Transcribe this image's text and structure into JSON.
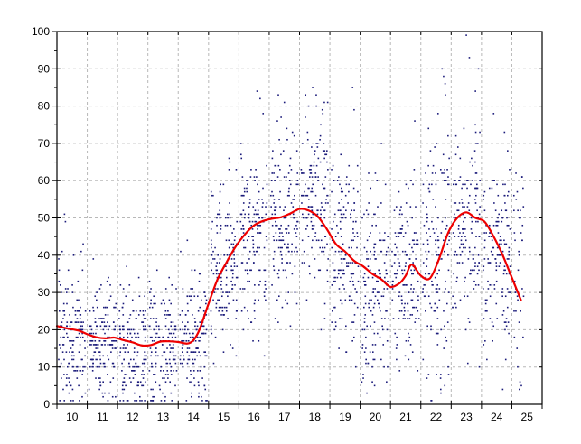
{
  "chart_data": {
    "type": "scatter",
    "title": "",
    "xlabel": "",
    "ylabel": "",
    "xlim": [
      9.5,
      25.5
    ],
    "ylim": [
      0,
      100
    ],
    "x_ticks": [
      "10",
      "11",
      "12",
      "13",
      "14",
      "15",
      "16",
      "17",
      "18",
      "19",
      "20",
      "21",
      "22",
      "23",
      "24",
      "25"
    ],
    "y_ticks": [
      "0",
      "10",
      "20",
      "30",
      "40",
      "50",
      "60",
      "70",
      "80",
      "90",
      "100"
    ],
    "grid": true,
    "series": [
      {
        "type": "scatter",
        "color": "#1a1a7a",
        "bands": [
          {
            "x": [
              9.55,
              10.45
            ],
            "center": 18,
            "spread": 9,
            "count": 150,
            "outliers": [
              [
                9.75,
                51
              ],
              [
                9.78,
                49
              ],
              [
                10.3,
                41
              ],
              [
                10.05,
                40
              ]
            ]
          },
          {
            "x": [
              10.55,
              11.45
            ],
            "center": 17,
            "spread": 8,
            "count": 150,
            "outliers": [
              [
                10.7,
                39
              ],
              [
                11.2,
                34
              ],
              [
                11.0,
                3
              ]
            ]
          },
          {
            "x": [
              11.55,
              12.45
            ],
            "center": 14,
            "spread": 8,
            "count": 150,
            "outliers": [
              [
                11.8,
                37
              ],
              [
                12.2,
                34
              ],
              [
                12.3,
                1
              ]
            ]
          },
          {
            "x": [
              12.55,
              13.45
            ],
            "center": 15,
            "spread": 8,
            "count": 150,
            "outliers": [
              [
                12.8,
                36
              ],
              [
                13.2,
                34
              ],
              [
                12.7,
                2
              ]
            ]
          },
          {
            "x": [
              13.55,
              14.45
            ],
            "center": 17,
            "spread": 9,
            "count": 150,
            "outliers": [
              [
                13.8,
                44
              ],
              [
                14.2,
                35
              ]
            ]
          },
          {
            "x": [
              14.55,
              15.45
            ],
            "center": 38,
            "spread": 10,
            "count": 150,
            "outliers": [
              [
                14.6,
                56
              ],
              [
                14.65,
                56
              ],
              [
                15.2,
                65
              ],
              [
                15.3,
                15
              ]
            ]
          },
          {
            "x": [
              15.55,
              16.45
            ],
            "center": 45,
            "spread": 12,
            "count": 150,
            "outliers": [
              [
                16.1,
                84
              ],
              [
                16.2,
                82
              ],
              [
                16.3,
                78
              ],
              [
                15.9,
                22
              ]
            ]
          },
          {
            "x": [
              16.55,
              17.45
            ],
            "center": 50,
            "spread": 12,
            "count": 150,
            "outliers": [
              [
                16.8,
                83
              ],
              [
                17.0,
                81
              ],
              [
                17.2,
                21
              ]
            ]
          },
          {
            "x": [
              17.55,
              18.45
            ],
            "center": 55,
            "spread": 12,
            "count": 150,
            "outliers": [
              [
                17.7,
                83
              ],
              [
                17.8,
                80
              ],
              [
                18.2,
                75
              ]
            ]
          },
          {
            "x": [
              18.55,
              19.45
            ],
            "center": 38,
            "spread": 12,
            "count": 150,
            "outliers": [
              [
                19.25,
                85
              ],
              [
                19.3,
                79
              ],
              [
                18.8,
                15
              ]
            ]
          },
          {
            "x": [
              19.55,
              20.45
            ],
            "center": 30,
            "spread": 12,
            "count": 150,
            "outliers": [
              [
                19.6,
                8
              ],
              [
                20.2,
                70
              ],
              [
                19.9,
                10
              ]
            ]
          },
          {
            "x": [
              20.55,
              21.45
            ],
            "center": 34,
            "spread": 12,
            "count": 150,
            "outliers": [
              [
                21.3,
                76
              ],
              [
                20.8,
                9
              ],
              [
                21.1,
                12
              ]
            ]
          },
          {
            "x": [
              21.55,
              22.45
            ],
            "center": 40,
            "spread": 16,
            "count": 150,
            "outliers": [
              [
                22.2,
                90
              ],
              [
                22.25,
                88
              ],
              [
                22.3,
                86
              ],
              [
                21.7,
                7
              ]
            ]
          },
          {
            "x": [
              22.55,
              23.45
            ],
            "center": 48,
            "spread": 14,
            "count": 150,
            "outliers": [
              [
                23.0,
                99
              ],
              [
                23.1,
                93
              ],
              [
                23.3,
                84
              ],
              [
                23.4,
                90
              ],
              [
                23.05,
                11
              ]
            ]
          },
          {
            "x": [
              23.55,
              24.45
            ],
            "center": 38,
            "spread": 12,
            "count": 140,
            "outliers": [
              [
                23.9,
                78
              ],
              [
                24.2,
                4
              ],
              [
                24.3,
                12
              ]
            ]
          },
          {
            "x": [
              24.55,
              24.9
            ],
            "center": 36,
            "spread": 12,
            "count": 40,
            "outliers": [
              [
                24.7,
                52
              ],
              [
                24.75,
                4
              ]
            ]
          }
        ]
      },
      {
        "type": "line",
        "color": "#ee0000",
        "x": [
          9.5,
          9.8,
          10.2,
          10.5,
          10.8,
          11.1,
          11.4,
          11.7,
          12.0,
          12.3,
          12.6,
          12.9,
          13.2,
          13.5,
          13.8,
          14.0,
          14.2,
          14.5,
          14.8,
          15.1,
          15.4,
          15.7,
          16.0,
          16.3,
          16.6,
          16.9,
          17.2,
          17.5,
          17.8,
          18.1,
          18.4,
          18.7,
          19.0,
          19.3,
          19.6,
          19.9,
          20.2,
          20.5,
          20.8,
          21.0,
          21.2,
          21.5,
          21.8,
          22.1,
          22.4,
          22.7,
          23.0,
          23.3,
          23.6,
          23.9,
          24.2,
          24.5,
          24.8
        ],
        "y": [
          21,
          20.4,
          19.8,
          18.8,
          18.0,
          17.7,
          17.9,
          17.2,
          16.6,
          15.8,
          15.9,
          16.8,
          16.9,
          16.7,
          16.3,
          17.2,
          20.0,
          27.0,
          33.6,
          38.2,
          42.4,
          45.6,
          48.0,
          49.2,
          49.8,
          50.2,
          51.2,
          52.4,
          52.0,
          50.4,
          47.0,
          43.0,
          41.0,
          38.5,
          37.0,
          35.0,
          33.5,
          31.5,
          32.5,
          34.5,
          37.5,
          34.5,
          33.8,
          39.0,
          46.0,
          50.0,
          51.5,
          50.0,
          49.0,
          45.0,
          40.0,
          34.0,
          28.0
        ]
      }
    ]
  }
}
